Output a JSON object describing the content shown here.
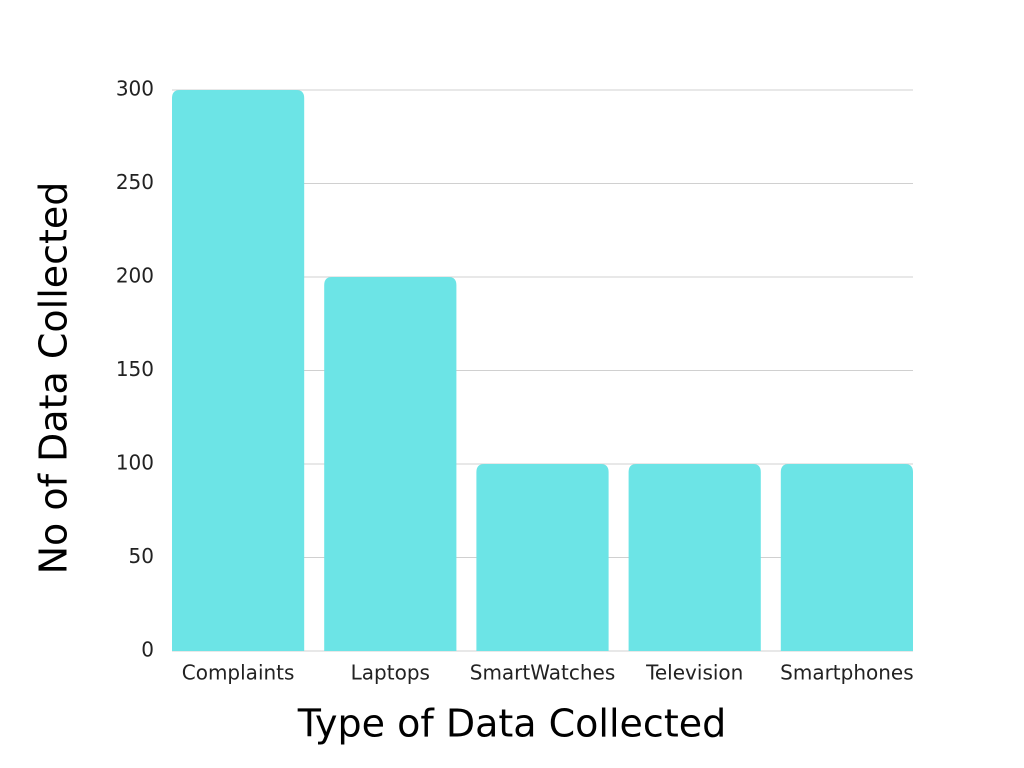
{
  "chart_data": {
    "type": "bar",
    "title": "",
    "xlabel": "Type of Data Collected",
    "ylabel": "No of Data Collected",
    "categories": [
      "Complaints",
      "Laptops",
      "SmartWatches",
      "Television",
      "Smartphones"
    ],
    "values": [
      300,
      200,
      100,
      100,
      100
    ],
    "ylim": [
      0,
      300
    ],
    "yticks": [
      0,
      50,
      100,
      150,
      200,
      250,
      300
    ],
    "grid": true,
    "legend": "none",
    "bar_color": "#6ce4e6",
    "grid_color": "#d0d0d0"
  }
}
